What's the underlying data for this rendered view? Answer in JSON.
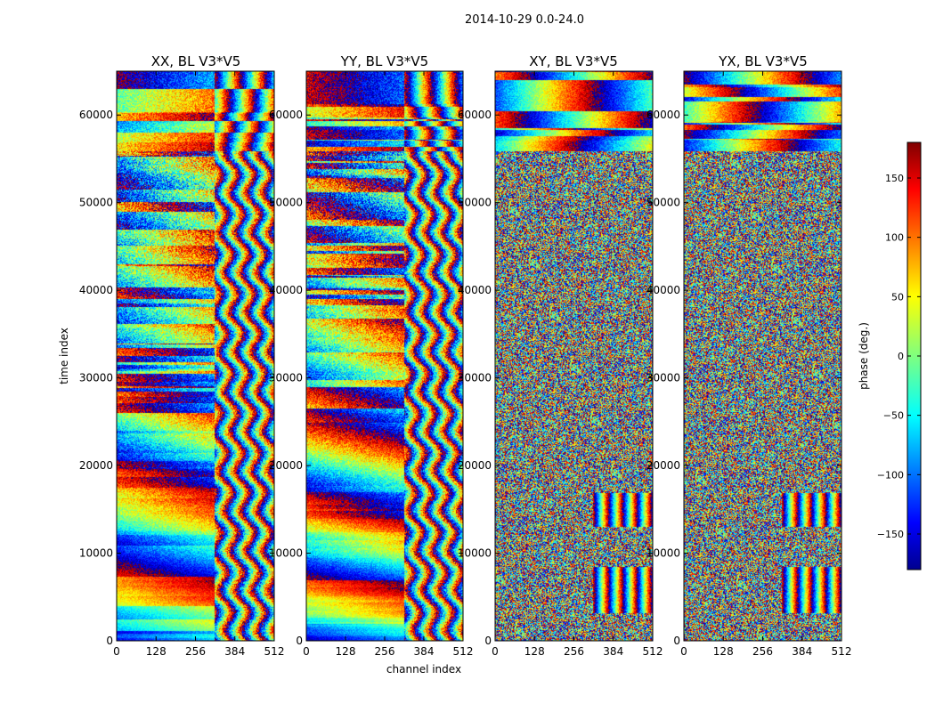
{
  "chart_data": {
    "type": "heatmap",
    "suptitle": "2014-10-29 0.0-24.0",
    "xlabel": "channel index",
    "ylabel": "time index",
    "xlim": [
      0,
      512
    ],
    "ylim": [
      0,
      65000
    ],
    "x_ticks": [
      0,
      128,
      256,
      384,
      512
    ],
    "y_ticks": [
      0,
      10000,
      20000,
      30000,
      40000,
      50000,
      60000
    ],
    "panels": [
      {
        "title": "XX, BL V3*V5",
        "kind": "parallel"
      },
      {
        "title": "YY, BL V3*V5",
        "kind": "parallel"
      },
      {
        "title": "XY, BL V3*V5",
        "kind": "cross"
      },
      {
        "title": "YX, BL V3*V5",
        "kind": "cross"
      }
    ],
    "colorbar": {
      "label": "phase (deg.)",
      "range": [
        -180,
        180
      ],
      "ticks": [
        150,
        100,
        50,
        0,
        -50,
        -100,
        -150
      ],
      "colormap": "jet"
    }
  }
}
